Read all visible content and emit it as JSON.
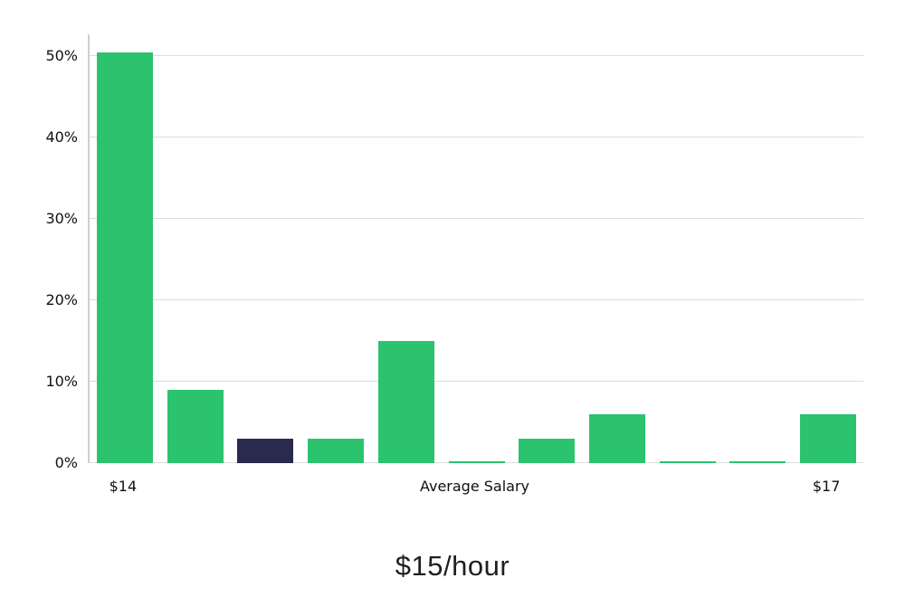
{
  "chart_data": {
    "type": "bar",
    "title": "$15/hour",
    "xlabel": "",
    "ylabel": "",
    "grid": true,
    "legend": "none",
    "ylim": [
      0,
      52.7
    ],
    "y_ticks": [
      0,
      10,
      20,
      30,
      40,
      50
    ],
    "y_tick_suffix": "%",
    "values": [
      50.5,
      9,
      3,
      3,
      15,
      0.2,
      3,
      6,
      0.2,
      0.2,
      6
    ],
    "default_color": "#2bc36e",
    "highlight": {
      "index": 2,
      "color": "#282b4d"
    },
    "x_ticks": [
      {
        "bar_index": 0,
        "label": "$14"
      },
      {
        "bar_index": 5,
        "label": "Average Salary"
      },
      {
        "bar_index": 10,
        "label": "$17"
      }
    ],
    "colors": {
      "gridline": "#dcdcdc",
      "axis_spine": "#cfcfcf",
      "tick_text": "#111111",
      "title_text": "#1f1f1f",
      "background": "#ffffff"
    }
  }
}
